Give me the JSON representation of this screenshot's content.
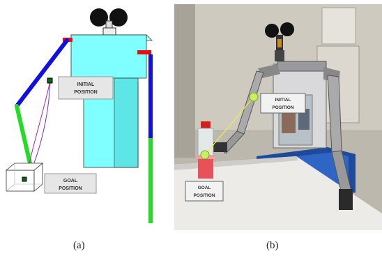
{
  "panel_a": {
    "initial_label_line1": "INITIAL",
    "initial_label_line2": "POSITION",
    "goal_label_line1": "GOAL",
    "goal_label_line2": "POSITION"
  },
  "panel_b": {
    "initial_label_line1": "INITIAL",
    "initial_label_line2": "POSITION",
    "goal_label_line1": "GOAL",
    "goal_label_line2": "POSITION"
  },
  "captions": {
    "a": "(a)",
    "b": "(b)"
  },
  "colors": {
    "torso": "#7fffff",
    "upper_arm": "#1010e0",
    "forearm": "#22dd22",
    "shoulder": "#e01010",
    "target_sphere": "#c8f060",
    "tether_line": "#f0f040"
  }
}
